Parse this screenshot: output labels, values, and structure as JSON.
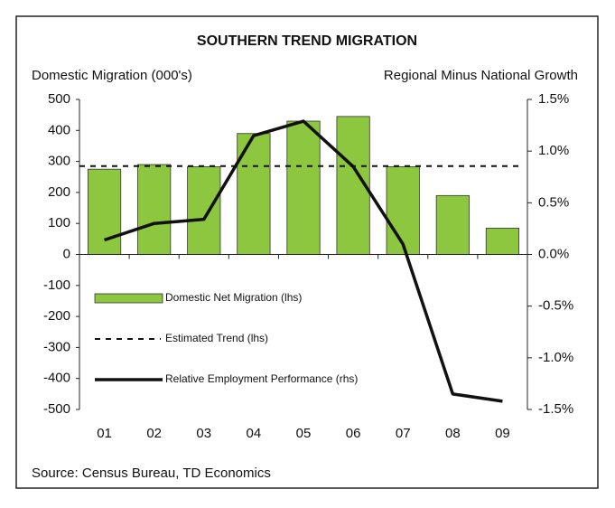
{
  "chart_data": {
    "type": "bar_line",
    "title": "SOUTHERN TREND MIGRATION",
    "y_label": "Domestic Migration (000's)",
    "y2_label": "Regional Minus National Growth",
    "source": "Source: Census Bureau, TD Economics",
    "categories": [
      "01",
      "02",
      "03",
      "04",
      "05",
      "06",
      "07",
      "08",
      "09"
    ],
    "series": [
      {
        "name": "Domestic Net Migration (lhs)",
        "type": "bar",
        "color": "#8dc63f",
        "values": [
          275,
          290,
          283,
          390,
          430,
          445,
          283,
          190,
          85
        ]
      },
      {
        "name": "Estimated Trend (lhs)",
        "type": "dashed",
        "color": "#111111",
        "values": [
          285,
          285,
          285,
          285,
          285,
          285,
          285,
          285,
          285
        ]
      },
      {
        "name": "Relative Employment Performance (rhs)",
        "type": "line",
        "axis": "y2",
        "color": "#111111",
        "values": [
          0.14,
          0.3,
          0.34,
          1.15,
          1.29,
          0.85,
          0.1,
          -1.35,
          -1.42
        ]
      }
    ],
    "ylim": [
      -500,
      500
    ],
    "yticks": [
      -500,
      -400,
      -300,
      -200,
      -100,
      0,
      100,
      200,
      300,
      400,
      500
    ],
    "y2lim": [
      -1.5,
      1.5
    ],
    "y2ticks": [
      {
        "value": -1.5,
        "label": "-1.5%"
      },
      {
        "value": -1.0,
        "label": "-1.0%"
      },
      {
        "value": -0.5,
        "label": "-0.5%"
      },
      {
        "value": 0,
        "label": "0.0%"
      },
      {
        "value": 0.5,
        "label": "0.5%"
      },
      {
        "value": 1.0,
        "label": "1.0%"
      },
      {
        "value": 1.5,
        "label": "1.5%"
      }
    ],
    "legend": "left"
  }
}
